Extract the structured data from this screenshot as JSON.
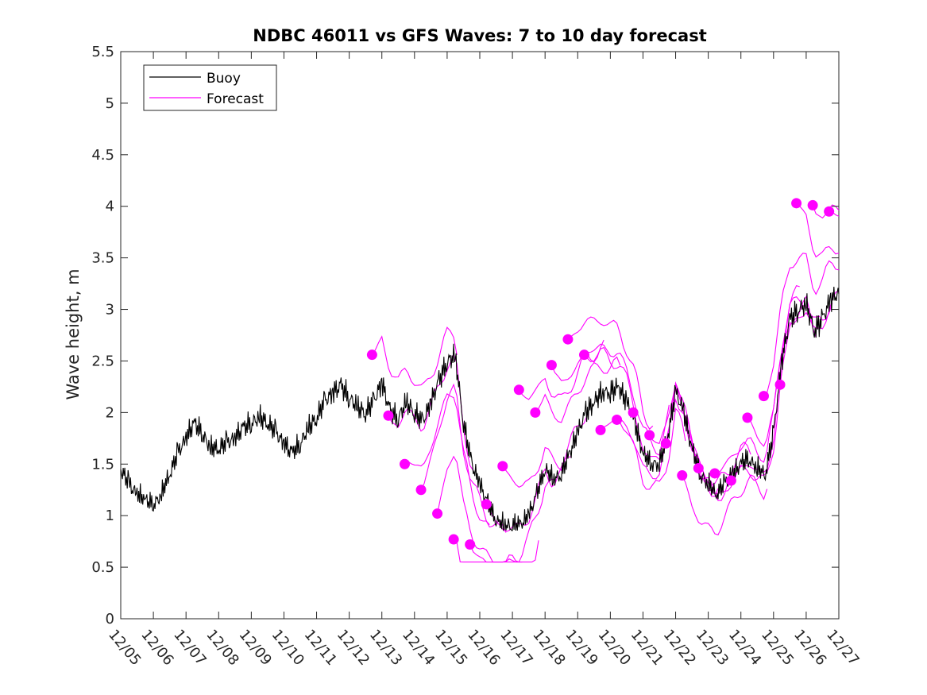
{
  "chart_data": {
    "type": "line",
    "title": "NDBC 46011 vs GFS Waves: 7 to 10 day forecast",
    "xlabel": "",
    "ylabel": "Wave height, m",
    "xlim": [
      0,
      22
    ],
    "ylim": [
      0,
      5.5
    ],
    "x_ticks": [
      "12/05",
      "12/06",
      "12/07",
      "12/08",
      "12/09",
      "12/10",
      "12/11",
      "12/12",
      "12/13",
      "12/14",
      "12/15",
      "12/16",
      "12/17",
      "12/18",
      "12/19",
      "12/20",
      "12/21",
      "12/22",
      "12/23",
      "12/24",
      "12/25",
      "12/26",
      "12/27"
    ],
    "y_ticks": [
      "0",
      "0.5",
      "1",
      "1.5",
      "2",
      "2.5",
      "3",
      "3.5",
      "4",
      "4.5",
      "5",
      "5.5"
    ],
    "legend": {
      "position": "top-left",
      "entries": [
        "Buoy",
        "Forecast"
      ]
    },
    "colors": {
      "buoy": "#000000",
      "forecast": "#ff00ff",
      "axis": "#262626"
    },
    "series": [
      {
        "name": "Buoy",
        "x": [
          0,
          0.25,
          0.5,
          0.75,
          1,
          1.25,
          1.5,
          1.75,
          2,
          2.25,
          2.5,
          2.75,
          3,
          3.25,
          3.5,
          3.75,
          4,
          4.25,
          4.5,
          4.75,
          5,
          5.25,
          5.5,
          5.75,
          6,
          6.25,
          6.5,
          6.75,
          7,
          7.25,
          7.5,
          7.75,
          8,
          8.25,
          8.5,
          8.75,
          9,
          9.25,
          9.5,
          9.75,
          10,
          10.25,
          10.5,
          10.75,
          11,
          11.25,
          11.5,
          11.75,
          12,
          12.25,
          12.5,
          12.75,
          13,
          13.25,
          13.5,
          13.75,
          14,
          14.25,
          14.5,
          14.75,
          15,
          15.25,
          15.5,
          15.75,
          16,
          16.25,
          16.5,
          16.75,
          17,
          17.25,
          17.5,
          17.75,
          18,
          18.25,
          18.5,
          18.75,
          19,
          19.25,
          19.5,
          19.75,
          20,
          20.25,
          20.5,
          20.75,
          21,
          21.25,
          21.5,
          21.75,
          22
        ],
        "y": [
          1.45,
          1.3,
          1.2,
          1.15,
          1.1,
          1.2,
          1.4,
          1.6,
          1.75,
          1.9,
          1.8,
          1.65,
          1.65,
          1.7,
          1.75,
          1.85,
          1.9,
          1.95,
          1.9,
          1.8,
          1.7,
          1.6,
          1.7,
          1.85,
          1.95,
          2.1,
          2.2,
          2.25,
          2.15,
          2.05,
          2.0,
          2.1,
          2.3,
          2.0,
          1.95,
          2.1,
          2.0,
          1.9,
          2.1,
          2.3,
          2.5,
          2.55,
          1.9,
          1.5,
          1.3,
          1.1,
          0.95,
          0.9,
          0.9,
          0.9,
          1.0,
          1.2,
          1.45,
          1.35,
          1.4,
          1.6,
          1.8,
          2.0,
          2.1,
          2.2,
          2.2,
          2.25,
          2.1,
          1.9,
          1.6,
          1.5,
          1.5,
          1.75,
          2.2,
          2.0,
          1.65,
          1.4,
          1.3,
          1.2,
          1.3,
          1.4,
          1.5,
          1.55,
          1.45,
          1.4,
          1.8,
          2.5,
          2.9,
          3.0,
          3.05,
          2.8,
          2.9,
          3.1,
          3.15
        ]
      },
      {
        "name": "Forecast",
        "x": [
          7.7,
          8.2,
          8.7,
          9.2,
          9.7,
          10.2,
          10.7,
          11.2,
          11.7,
          12.2,
          12.7,
          13.2,
          13.7,
          14.2,
          14.7,
          15.2,
          15.7,
          16.2,
          16.7,
          17.2,
          17.7,
          18.2,
          18.7,
          19.2,
          19.7,
          20.2,
          20.7,
          21.2,
          21.7
        ],
        "y": [
          2.56,
          1.97,
          1.5,
          1.25,
          1.02,
          0.77,
          0.72,
          1.11,
          1.48,
          2.22,
          2.0,
          2.46,
          2.71,
          2.56,
          1.83,
          1.93,
          2.0,
          1.78,
          1.7,
          1.39,
          1.46,
          1.41,
          1.34,
          1.95,
          2.16,
          2.27,
          4.03,
          4.01,
          3.95
        ]
      }
    ]
  }
}
